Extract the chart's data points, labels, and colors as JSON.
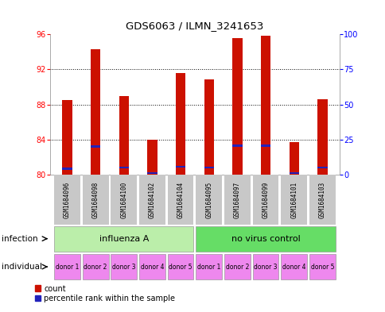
{
  "title": "GDS6063 / ILMN_3241653",
  "samples": [
    "GSM1684096",
    "GSM1684098",
    "GSM1684100",
    "GSM1684102",
    "GSM1684104",
    "GSM1684095",
    "GSM1684097",
    "GSM1684099",
    "GSM1684101",
    "GSM1684103"
  ],
  "red_values": [
    88.5,
    94.3,
    89.0,
    84.0,
    91.6,
    90.9,
    95.6,
    95.8,
    83.7,
    88.6
  ],
  "blue_values": [
    80.7,
    83.2,
    80.8,
    80.2,
    80.9,
    80.8,
    83.3,
    83.3,
    80.2,
    80.8
  ],
  "y_min": 80,
  "y_max": 96,
  "y_ticks_left": [
    80,
    84,
    88,
    92,
    96
  ],
  "y_ticks_right": [
    0,
    25,
    50,
    75,
    100
  ],
  "bar_color": "#CC1100",
  "blue_color": "#2222BB",
  "inf_labels": [
    "influenza A",
    "no virus control"
  ],
  "inf_colors": [
    "#BBEEAA",
    "#66DD66"
  ],
  "inf_ranges": [
    [
      0,
      5
    ],
    [
      5,
      10
    ]
  ],
  "individual_labels": [
    "donor 1",
    "donor 2",
    "donor 3",
    "donor 4",
    "donor 5",
    "donor 1",
    "donor 2",
    "donor 3",
    "donor 4",
    "donor 5"
  ],
  "donor_color": "#EE88EE",
  "sample_bg": "#C8C8C8",
  "legend_labels": [
    "count",
    "percentile rank within the sample"
  ]
}
